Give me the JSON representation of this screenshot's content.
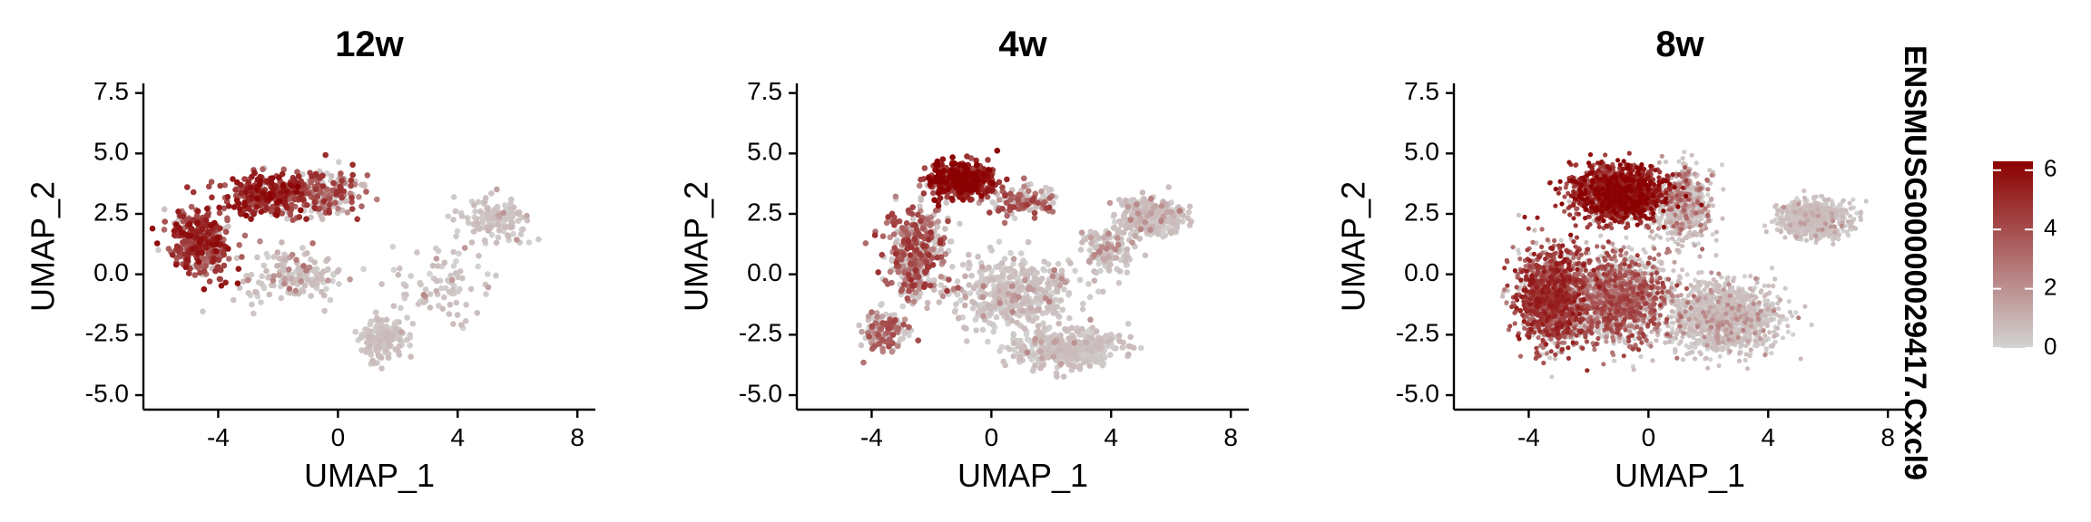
{
  "chart_data": {
    "type": "scatter",
    "feature": "ENSMUSG00000029417.Cxcl9",
    "xlabel": "UMAP_1",
    "ylabel": "UMAP_2",
    "xlim": [
      -6.5,
      8.6
    ],
    "ylim": [
      -5.6,
      7.9
    ],
    "x_ticks": [
      -4,
      0,
      4,
      8
    ],
    "y_ticks": [
      7.5,
      5.0,
      2.5,
      0.0,
      -2.5,
      -5.0
    ],
    "x_tick_labels": [
      "-4",
      "0",
      "4",
      "8"
    ],
    "y_tick_labels": [
      "7.5",
      "5.0",
      "2.5",
      "0.0",
      "-2.5",
      "-5.0"
    ],
    "color_scale": {
      "low": "#d3d3d3",
      "high": "#8b0000",
      "min": 0,
      "max": 6.3,
      "ticks": [
        0,
        2,
        4,
        6
      ],
      "tick_labels": [
        "0",
        "2",
        "4",
        "6"
      ]
    },
    "legend_position": "right",
    "panels": [
      {
        "title": "12w",
        "n_points": 1400,
        "clusters": [
          {
            "cx": -4.6,
            "cy": 1.3,
            "sx": 0.9,
            "sy": 1.3,
            "w": 0.26,
            "expr": 0.7
          },
          {
            "cx": -2.3,
            "cy": 3.3,
            "sx": 1.3,
            "sy": 0.8,
            "w": 0.22,
            "expr": 0.75
          },
          {
            "cx": -0.3,
            "cy": 3.5,
            "sx": 1.0,
            "sy": 1.0,
            "w": 0.12,
            "expr": 0.55
          },
          {
            "cx": -1.5,
            "cy": 0.0,
            "sx": 1.4,
            "sy": 1.0,
            "w": 0.12,
            "expr": 0.25
          },
          {
            "cx": 1.5,
            "cy": -2.7,
            "sx": 0.7,
            "sy": 0.8,
            "w": 0.12,
            "expr": 0.05
          },
          {
            "cx": 5.2,
            "cy": 2.3,
            "sx": 1.0,
            "sy": 0.8,
            "w": 0.1,
            "expr": 0.08
          },
          {
            "cx": 3.5,
            "cy": -0.5,
            "sx": 1.5,
            "sy": 1.4,
            "w": 0.06,
            "expr": 0.15
          }
        ]
      },
      {
        "title": "4w",
        "n_points": 2300,
        "clusters": [
          {
            "cx": -1.0,
            "cy": 3.9,
            "sx": 0.9,
            "sy": 0.7,
            "w": 0.17,
            "expr": 0.85
          },
          {
            "cx": -2.5,
            "cy": 0.8,
            "sx": 0.9,
            "sy": 1.8,
            "w": 0.16,
            "expr": 0.55
          },
          {
            "cx": -3.6,
            "cy": -2.4,
            "sx": 0.6,
            "sy": 0.8,
            "w": 0.06,
            "expr": 0.45
          },
          {
            "cx": 0.8,
            "cy": -0.8,
            "sx": 1.9,
            "sy": 1.3,
            "w": 0.2,
            "expr": 0.15
          },
          {
            "cx": 2.5,
            "cy": -3.1,
            "sx": 1.6,
            "sy": 0.7,
            "w": 0.17,
            "expr": 0.08
          },
          {
            "cx": 5.3,
            "cy": 2.4,
            "sx": 1.0,
            "sy": 0.7,
            "w": 0.13,
            "expr": 0.15
          },
          {
            "cx": 3.8,
            "cy": 1.0,
            "sx": 0.8,
            "sy": 0.8,
            "w": 0.06,
            "expr": 0.2
          },
          {
            "cx": 1.0,
            "cy": 3.0,
            "sx": 1.0,
            "sy": 0.6,
            "w": 0.05,
            "expr": 0.5
          }
        ]
      },
      {
        "title": "8w",
        "n_points": 6500,
        "clusters": [
          {
            "cx": -1.0,
            "cy": 3.3,
            "sx": 1.4,
            "sy": 1.0,
            "w": 0.2,
            "expr": 0.8
          },
          {
            "cx": -3.2,
            "cy": -1.0,
            "sx": 1.0,
            "sy": 1.8,
            "w": 0.2,
            "expr": 0.65
          },
          {
            "cx": -1.0,
            "cy": -1.0,
            "sx": 1.5,
            "sy": 1.7,
            "w": 0.2,
            "expr": 0.5
          },
          {
            "cx": 2.5,
            "cy": -1.8,
            "sx": 1.5,
            "sy": 1.3,
            "w": 0.2,
            "expr": 0.15
          },
          {
            "cx": 1.2,
            "cy": 2.8,
            "sx": 0.8,
            "sy": 1.4,
            "w": 0.08,
            "expr": 0.3
          },
          {
            "cx": 5.5,
            "cy": 2.3,
            "sx": 1.0,
            "sy": 0.7,
            "w": 0.12,
            "expr": 0.08
          }
        ]
      }
    ]
  }
}
